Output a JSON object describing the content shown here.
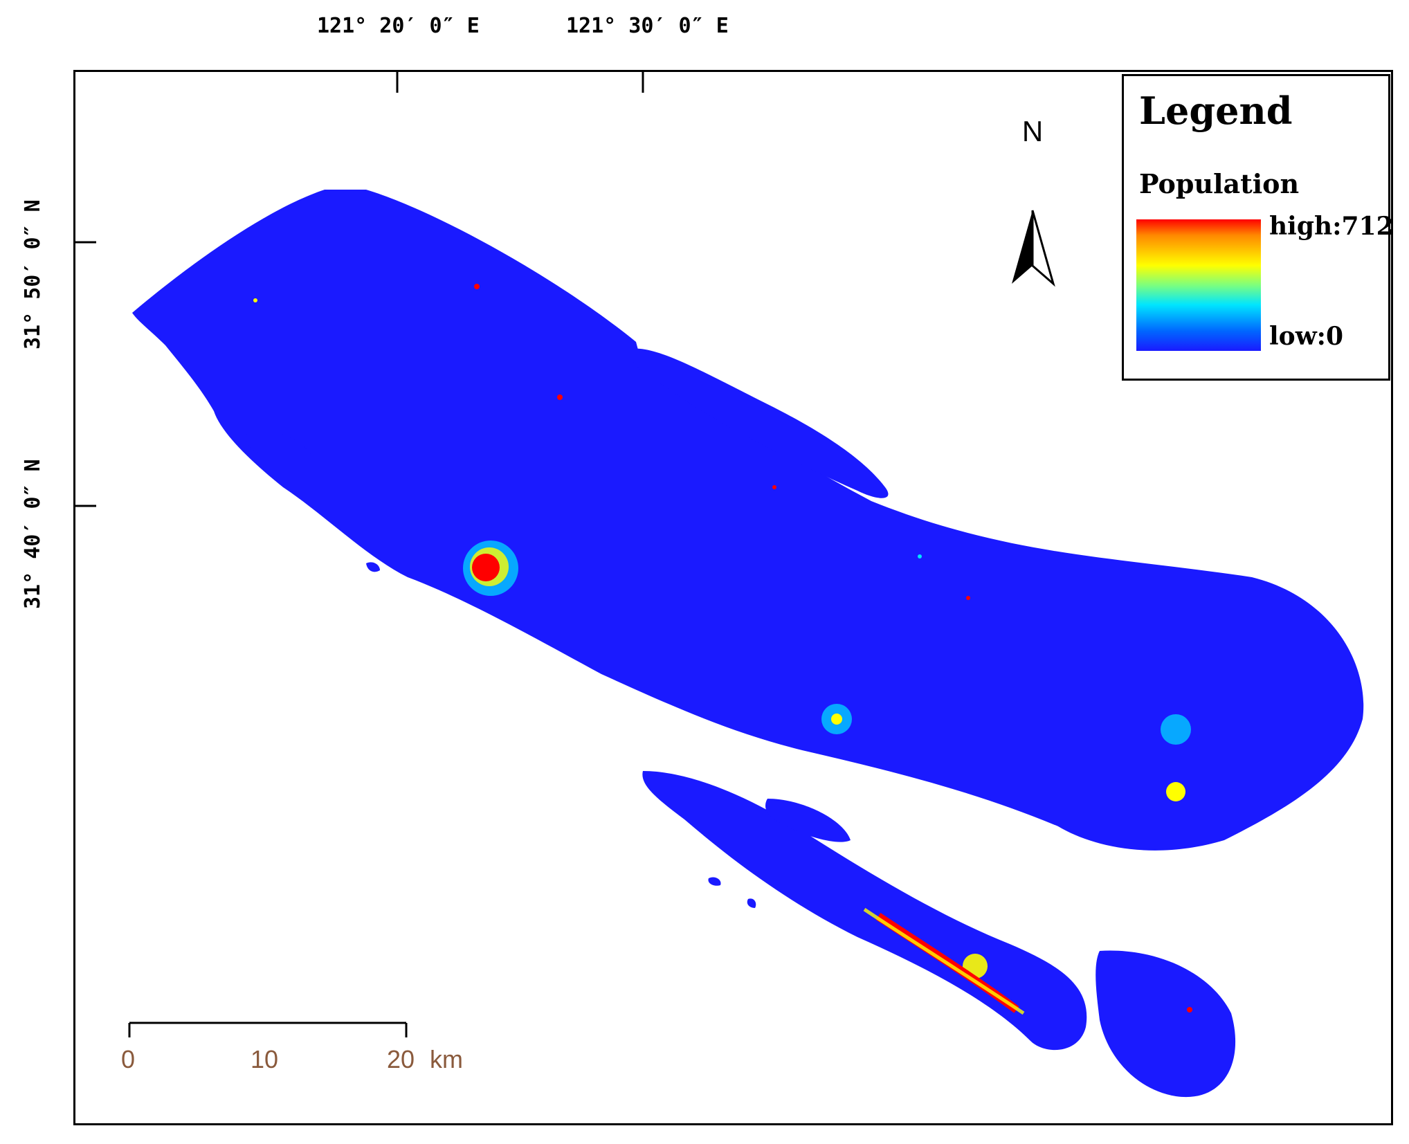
{
  "longitude_labels": [
    "121° 20′ 0″ E",
    "121° 30′ 0″ E"
  ],
  "latitude_labels": [
    "31° 50′ 0″ N",
    "31° 40′ 0″ N"
  ],
  "north_arrow": {
    "label": "N",
    "icon": "north-arrow-icon"
  },
  "legend": {
    "title": "Legend",
    "field": "Population",
    "high_label": "high:712",
    "low_label": "low:0",
    "ramp_colors": [
      "#ff0000",
      "#ffff00",
      "#00e5ff",
      "#1a1aff"
    ]
  },
  "scale_bar": {
    "ticks": [
      "0",
      "10",
      "20"
    ],
    "unit": "km"
  },
  "colors": {
    "land": "#1a1aff",
    "low": "#1a1aff",
    "mid": "#00e5ff",
    "midhigh": "#ffff00",
    "high": "#ff0000"
  }
}
